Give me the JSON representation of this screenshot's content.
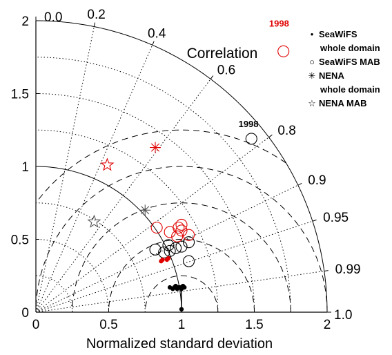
{
  "chart_data": {
    "type": "scatter",
    "subtype": "taylor-diagram",
    "xlabel": "Normalized standard deviation",
    "correlation_label": "Correlation",
    "xlim": [
      0,
      2
    ],
    "ylim": [
      0,
      2
    ],
    "x_ticks": [
      "0",
      "0.5",
      "1",
      "1.5",
      "2"
    ],
    "y_ticks": [
      "0",
      "0.5",
      "1",
      "1.5",
      "2"
    ],
    "correlation_ticks": [
      {
        "r": 0.0,
        "label": "0.0"
      },
      {
        "r": 0.2,
        "label": "0.2"
      },
      {
        "r": 0.4,
        "label": "0.4"
      },
      {
        "r": 0.6,
        "label": "0.6"
      },
      {
        "r": 0.8,
        "label": "0.8"
      },
      {
        "r": 0.9,
        "label": "0.9"
      },
      {
        "r": 0.95,
        "label": "0.95"
      },
      {
        "r": 0.99,
        "label": "0.99"
      },
      {
        "r": 1.0,
        "label": "1.0"
      }
    ],
    "std_arcs_dotted": [
      0.25,
      0.5,
      0.75,
      1.25,
      1.5,
      1.75
    ],
    "std_arcs_solid": [
      1.0,
      2.0
    ],
    "rmsd_arcs": [
      0.25,
      0.5,
      0.75,
      1.0,
      1.25
    ],
    "reference_std": 1.0,
    "colors": {
      "black": "#000000",
      "red": "#e00000",
      "gray": "#555555"
    },
    "series": [
      {
        "name": "SeaWiFS whole domain",
        "marker": "dot",
        "color": "#000000",
        "points": [
          [
            0.92,
            0.17
          ],
          [
            0.95,
            0.17
          ],
          [
            0.99,
            0.17
          ],
          [
            0.97,
            0.16
          ],
          [
            1.02,
            0.17
          ],
          [
            0.94,
            0.16
          ],
          [
            0.98,
            0.17
          ],
          [
            1.0,
            0.16
          ],
          [
            0.96,
            0.18
          ],
          [
            1.01,
            0.18
          ],
          [
            1.0,
            0.02
          ]
        ]
      },
      {
        "name": "SeaWiFS MAB",
        "marker": "circle",
        "color": "#000000",
        "points": [
          [
            0.82,
            0.43
          ],
          [
            0.88,
            0.41
          ],
          [
            0.92,
            0.42
          ],
          [
            1.0,
            0.45
          ],
          [
            1.05,
            0.48
          ],
          [
            0.96,
            0.44
          ],
          [
            1.05,
            0.35
          ],
          [
            0.91,
            0.46
          ],
          [
            1.48,
            1.19
          ]
        ]
      },
      {
        "name": "SeaWiFS MAB (red)",
        "marker": "circle",
        "color": "#e00000",
        "points": [
          [
            0.83,
            0.58
          ],
          [
            0.98,
            0.58
          ],
          [
            1.0,
            0.6
          ],
          [
            1.05,
            0.53
          ],
          [
            0.92,
            0.55
          ],
          [
            0.97,
            0.52
          ],
          [
            1.0,
            0.56
          ],
          [
            1.7,
            1.79
          ]
        ]
      },
      {
        "name": "SeaWiFS whole domain (red)",
        "marker": "dot",
        "color": "#e00000",
        "points": [
          [
            0.87,
            0.36
          ],
          [
            0.9,
            0.36
          ],
          [
            0.86,
            0.35
          ],
          [
            0.91,
            0.37
          ]
        ]
      },
      {
        "name": "NENA whole domain",
        "marker": "asterisk",
        "color": "#e00000",
        "points": [
          [
            0.82,
            1.13
          ]
        ]
      },
      {
        "name": "NENA whole domain (gray)",
        "marker": "asterisk",
        "color": "#555555",
        "points": [
          [
            0.75,
            0.7
          ]
        ]
      },
      {
        "name": "NENA MAB",
        "marker": "star",
        "color": "#e00000",
        "points": [
          [
            0.49,
            1.01
          ]
        ]
      },
      {
        "name": "NENA MAB (gray)",
        "marker": "star",
        "color": "#555555",
        "points": [
          [
            0.4,
            0.62
          ]
        ]
      }
    ],
    "annotations": [
      {
        "text": "1998",
        "x": 1.67,
        "y": 1.96,
        "color": "#e00000"
      },
      {
        "text": "1998",
        "x": 1.46,
        "y": 1.27,
        "color": "#000000"
      }
    ],
    "legend": {
      "placement": "top-right",
      "entries": [
        {
          "symbol": "•",
          "lines": [
            "SeaWiFS",
            "whole domain"
          ]
        },
        {
          "symbol": "○",
          "lines": [
            "SeaWiFS MAB"
          ]
        },
        {
          "symbol": "✳",
          "lines": [
            "NENA",
            "whole domain"
          ]
        },
        {
          "symbol": "☆",
          "lines": [
            "NENA MAB"
          ]
        }
      ]
    }
  }
}
